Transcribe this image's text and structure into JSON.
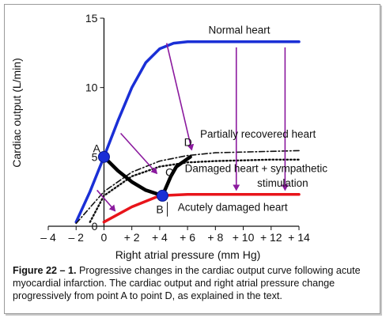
{
  "caption": {
    "figure_label": "Figure 22 – 1.",
    "text": "Progressive changes in the cardiac output curve following acute myocardial infarction. The cardiac output and right atrial pressure change progressively from point A to point D, as explained in the text."
  },
  "chart_data": {
    "type": "line",
    "xlabel": "Right atrial pressure (mm Hg)",
    "ylabel": "Cardiac output (L/min)",
    "xlim": [
      -4,
      14
    ],
    "ylim": [
      0,
      15
    ],
    "xticks": [
      -4,
      -2,
      0,
      2,
      4,
      6,
      8,
      10,
      12,
      14
    ],
    "xtick_labels": [
      "– 4",
      "– 2",
      "0",
      "+ 2",
      "+ 4",
      "+ 6",
      "+ 8",
      "+ 10",
      "+ 12",
      "+ 14"
    ],
    "yticks": [
      0,
      5,
      10,
      15
    ],
    "ytick_labels": [
      "0",
      "5",
      "10",
      "15"
    ],
    "grid": false,
    "series": [
      {
        "name": "Normal heart",
        "color": "#1a2fd6",
        "style": "solid",
        "x": [
          -2,
          -1,
          0,
          1,
          2,
          3,
          4,
          5,
          6,
          8,
          10,
          12,
          14
        ],
        "y": [
          0.3,
          2.5,
          5,
          7.6,
          10,
          11.8,
          12.8,
          13.2,
          13.3,
          13.3,
          13.3,
          13.3,
          13.3
        ]
      },
      {
        "name": "Partially recovered heart",
        "color": "#111111",
        "style": "dashdot",
        "x": [
          -2,
          0,
          2,
          4,
          6,
          8,
          10,
          12,
          14
        ],
        "y": [
          0.2,
          2.5,
          3.9,
          4.7,
          5.1,
          5.3,
          5.35,
          5.4,
          5.45
        ]
      },
      {
        "name": "Damaged heart + sympathetic stimulation",
        "color": "#111111",
        "style": "dotted",
        "x": [
          -1,
          0,
          2,
          4,
          6,
          8,
          10,
          12,
          14
        ],
        "y": [
          0.3,
          2.2,
          3.6,
          4.3,
          4.6,
          4.7,
          4.75,
          4.8,
          4.8
        ]
      },
      {
        "name": "Acutely damaged heart",
        "color": "#e8141a",
        "style": "solid",
        "x": [
          0,
          2,
          4,
          6,
          8,
          10,
          12,
          14
        ],
        "y": [
          0.3,
          1.4,
          2.2,
          2.3,
          2.3,
          2.3,
          2.3,
          2.3
        ]
      },
      {
        "name": "Progression path",
        "color": "#000000",
        "style": "thick",
        "x": [
          0,
          1,
          2,
          3,
          4.2,
          4.8,
          5.2,
          6.2
        ],
        "y": [
          5,
          4,
          3.2,
          2.6,
          2.2,
          3.6,
          4.3,
          5
        ]
      }
    ],
    "points": [
      {
        "label": "A",
        "x": 0,
        "y": 5,
        "marker": "circle",
        "color": "#1a2fd6"
      },
      {
        "label": "B",
        "x": 4.2,
        "y": 2.2,
        "marker": "circle",
        "color": "#1a2fd6"
      },
      {
        "label": "C",
        "x": 5.2,
        "y": 4.3,
        "marker": "none"
      },
      {
        "label": "D",
        "x": 6.2,
        "y": 5.0,
        "marker": "none"
      }
    ],
    "curve_labels": [
      {
        "text": "Normal heart",
        "x": 7.5,
        "y": 13.9
      },
      {
        "text": "Partially recovered heart",
        "x": 6.9,
        "y": 6.4
      },
      {
        "text": "Damaged heart + sympathetic",
        "x": 5.8,
        "y": 3.9
      },
      {
        "text": "stimulation",
        "x": 11.0,
        "y": 2.85
      },
      {
        "text": "Acutely damaged heart",
        "x": 5.3,
        "y": 1.1
      }
    ],
    "arrows": {
      "color": "#8b1a9e",
      "items": [
        [
          [
            4.5,
            13.2
          ],
          [
            6.3,
            5.5
          ]
        ],
        [
          [
            9.5,
            12.9
          ],
          [
            9.5,
            2.6
          ]
        ],
        [
          [
            13.0,
            12.9
          ],
          [
            13.0,
            2.6
          ]
        ],
        [
          [
            1.2,
            6.7
          ],
          [
            3.8,
            3.8
          ]
        ],
        [
          [
            -0.5,
            2.6
          ],
          [
            0.8,
            1.1
          ]
        ]
      ]
    }
  }
}
